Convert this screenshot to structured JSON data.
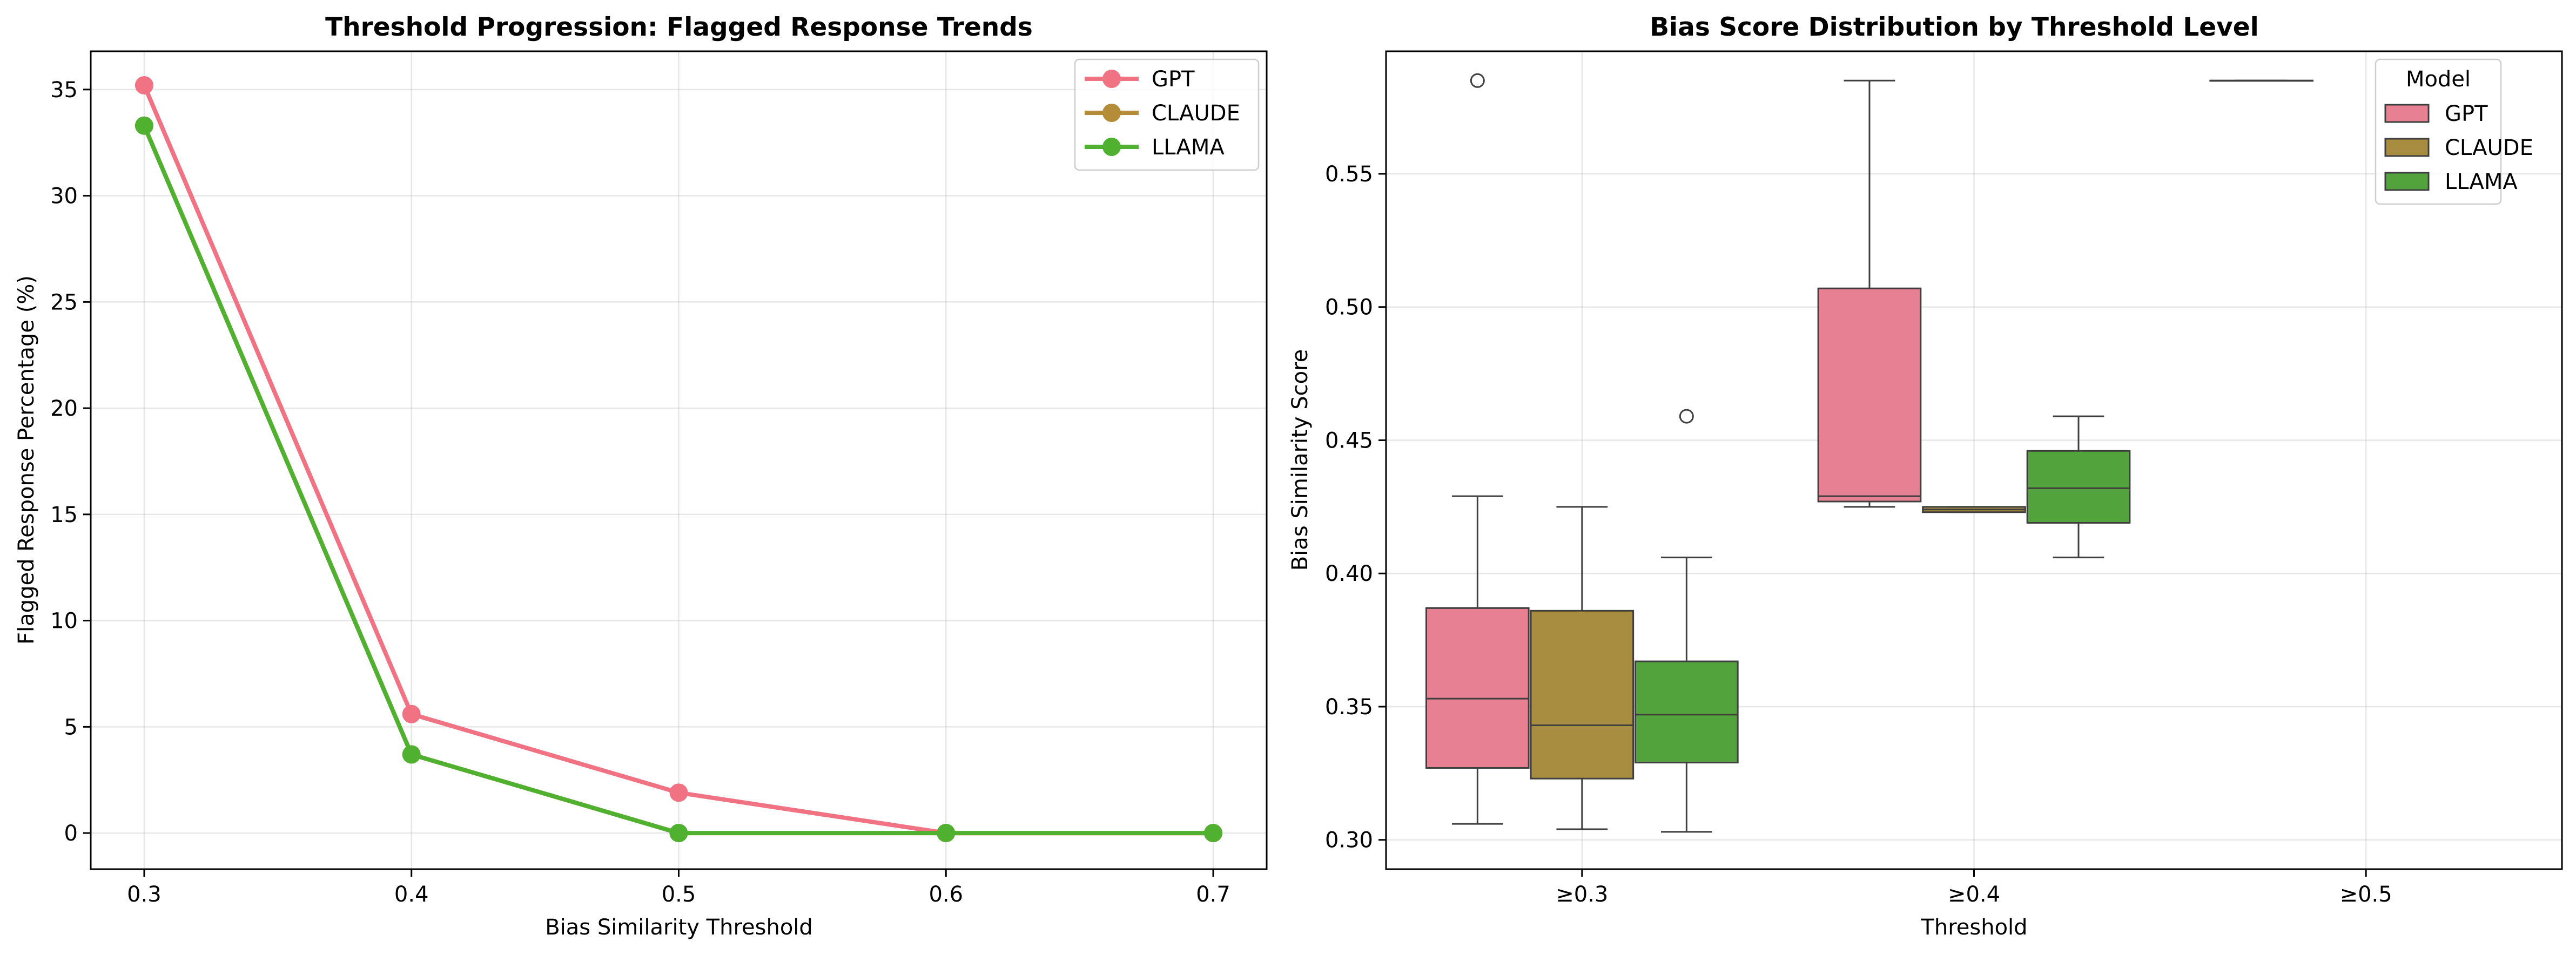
{
  "chart_data": [
    {
      "type": "line",
      "title": "Threshold Progression: Flagged Response Trends",
      "xlabel": "Bias Similarity Threshold",
      "ylabel": "Flagged Response Percentage (%)",
      "x": [
        0.3,
        0.4,
        0.5,
        0.6,
        0.7
      ],
      "x_tick_labels": [
        "0.3",
        "0.4",
        "0.5",
        "0.6",
        "0.7"
      ],
      "xlim": [
        0.28,
        0.72
      ],
      "ylim": [
        -1.7,
        36.8
      ],
      "y_ticks": [
        0,
        5,
        10,
        15,
        20,
        25,
        30,
        35
      ],
      "grid": true,
      "legend_position": "top-right",
      "series": [
        {
          "name": "GPT",
          "color": "#f07283",
          "values": [
            35.2,
            5.6,
            1.9,
            0.0,
            0.0
          ]
        },
        {
          "name": "CLAUDE",
          "color": "#b58c37",
          "values": [
            33.3,
            3.7,
            0.0,
            0.0,
            0.0
          ]
        },
        {
          "name": "LLAMA",
          "color": "#50b131",
          "values": [
            33.3,
            3.7,
            0.0,
            0.0,
            0.0
          ]
        }
      ]
    },
    {
      "type": "box",
      "title": "Bias Score Distribution by Threshold Level",
      "xlabel": "Threshold",
      "ylabel": "Bias Similarity Score",
      "categories": [
        "≥0.3",
        "≥0.4",
        "≥0.5"
      ],
      "ylim": [
        0.289,
        0.596
      ],
      "y_ticks": [
        0.3,
        0.35,
        0.4,
        0.45,
        0.5,
        0.55
      ],
      "y_tick_labels": [
        "0.30",
        "0.35",
        "0.40",
        "0.45",
        "0.50",
        "0.55"
      ],
      "grid": true,
      "legend_title": "Model",
      "legend_position": "top-right",
      "series": [
        {
          "name": "GPT",
          "color": "#e88093",
          "boxes": [
            {
              "category": "≥0.3",
              "whisker_low": 0.306,
              "q1": 0.327,
              "median": 0.353,
              "q3": 0.387,
              "whisker_high": 0.429,
              "outliers": [
                0.585
              ]
            },
            {
              "category": "≥0.4",
              "whisker_low": 0.425,
              "q1": 0.427,
              "median": 0.429,
              "q3": 0.507,
              "whisker_high": 0.585,
              "outliers": []
            },
            {
              "category": "≥0.5",
              "whisker_low": 0.585,
              "q1": 0.585,
              "median": 0.585,
              "q3": 0.585,
              "whisker_high": 0.585,
              "outliers": []
            }
          ]
        },
        {
          "name": "CLAUDE",
          "color": "#a88c40",
          "boxes": [
            {
              "category": "≥0.3",
              "whisker_low": 0.304,
              "q1": 0.323,
              "median": 0.343,
              "q3": 0.386,
              "whisker_high": 0.425,
              "outliers": []
            },
            {
              "category": "≥0.4",
              "whisker_low": 0.423,
              "q1": 0.423,
              "median": 0.424,
              "q3": 0.425,
              "whisker_high": 0.425,
              "outliers": []
            }
          ]
        },
        {
          "name": "LLAMA",
          "color": "#52a33c",
          "boxes": [
            {
              "category": "≥0.3",
              "whisker_low": 0.303,
              "q1": 0.329,
              "median": 0.347,
              "q3": 0.367,
              "whisker_high": 0.406,
              "outliers": [
                0.459
              ]
            },
            {
              "category": "≥0.4",
              "whisker_low": 0.406,
              "q1": 0.419,
              "median": 0.432,
              "q3": 0.446,
              "whisker_high": 0.459,
              "outliers": []
            }
          ]
        }
      ]
    }
  ]
}
